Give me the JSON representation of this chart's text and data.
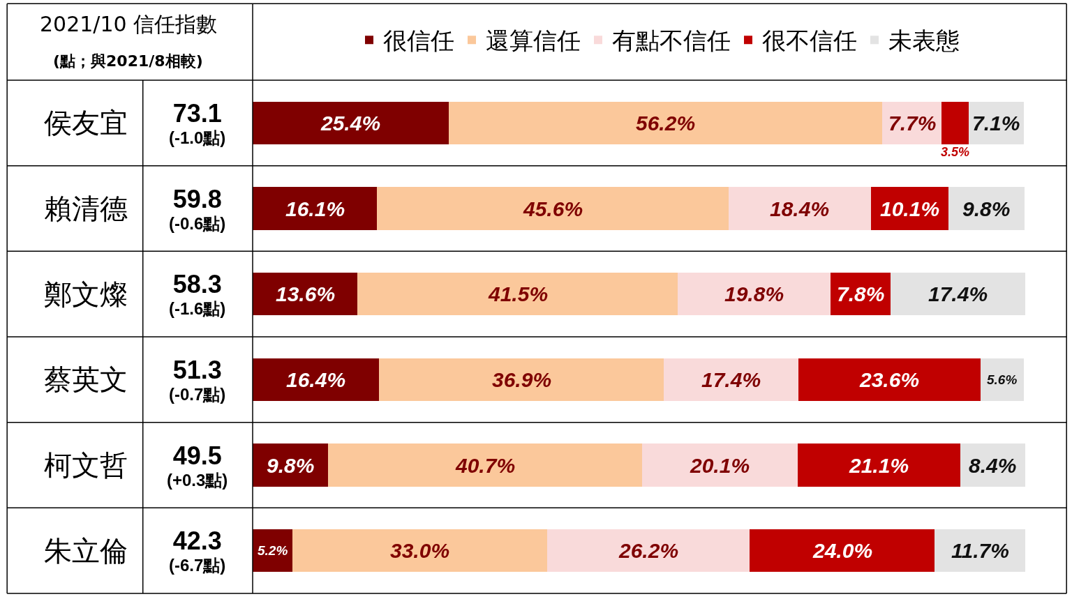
{
  "chart_data": {
    "type": "bar",
    "orientation": "horizontal",
    "stacked": true,
    "title": "2021/10 信任指數",
    "subtitle": "(點；與2021/8相較)",
    "categories": [
      "侯友宜",
      "賴清德",
      "鄭文燦",
      "蔡英文",
      "柯文哲",
      "朱立倫"
    ],
    "series": [
      {
        "name": "很信任",
        "color": "#7f0000",
        "values": [
          25.4,
          16.1,
          13.6,
          16.4,
          9.8,
          5.2
        ],
        "value_labels": [
          "25.4%",
          "16.1%",
          "13.6%",
          "16.4%",
          "9.8%",
          "5.2%"
        ]
      },
      {
        "name": "還算信任",
        "color": "#fbc89b",
        "values": [
          56.2,
          45.6,
          41.5,
          36.9,
          40.7,
          33.0
        ],
        "value_labels": [
          "56.2%",
          "45.6%",
          "41.5%",
          "36.9%",
          "40.7%",
          "33.0%"
        ]
      },
      {
        "name": "有點不信任",
        "color": "#f9dada",
        "values": [
          7.7,
          18.4,
          19.8,
          17.4,
          20.1,
          26.2
        ],
        "value_labels": [
          "7.7%",
          "18.4%",
          "19.8%",
          "17.4%",
          "20.1%",
          "26.2%"
        ]
      },
      {
        "name": "很不信任",
        "color": "#c00000",
        "values": [
          3.5,
          10.1,
          7.8,
          23.6,
          21.1,
          24.0
        ],
        "value_labels": [
          "3.5%",
          "10.1%",
          "7.8%",
          "23.6%",
          "21.1%",
          "24.0%"
        ]
      },
      {
        "name": "未表態",
        "color": "#e3e3e3",
        "values": [
          7.1,
          9.8,
          17.4,
          5.6,
          8.4,
          11.7
        ],
        "value_labels": [
          "7.1%",
          "9.8%",
          "17.4%",
          "5.6%",
          "8.4%",
          "11.7%"
        ]
      }
    ],
    "legend": "top",
    "tick_labels": "y",
    "annotations": [
      "73.1 (-1.0點)",
      "59.8 (-0.6點)",
      "58.3 (-1.6點)",
      "51.3 (-0.7點)",
      "49.5 (+0.3點)",
      "42.3 (-6.7點)"
    ]
  }
}
